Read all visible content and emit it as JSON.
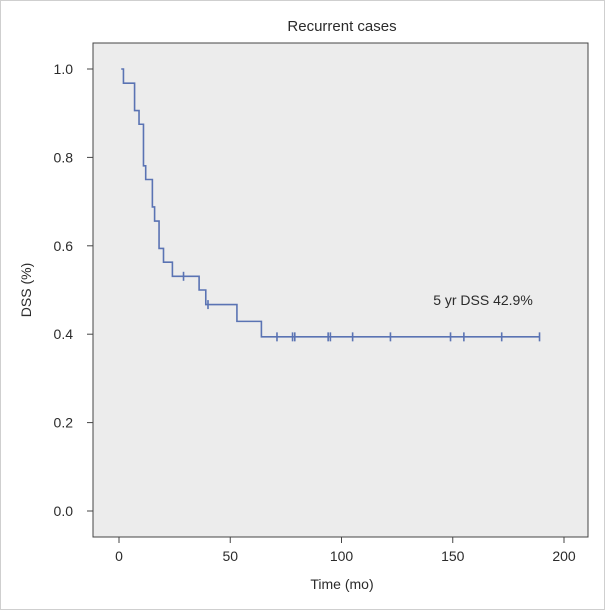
{
  "chart_data": {
    "type": "line",
    "title": "Recurrent cases",
    "xlabel": "Time (mo)",
    "ylabel": "DSS (%)",
    "xlim": [
      0,
      200
    ],
    "ylim": [
      0,
      1.0
    ],
    "xticks": [
      "0",
      "50",
      "100",
      "150",
      "200"
    ],
    "yticks": [
      "0.0",
      "0.2",
      "0.4",
      "0.6",
      "0.8",
      "1.0"
    ],
    "annotation": "5 yr DSS 42.9%",
    "grid": false,
    "colors": {
      "line": "#5a73b3",
      "plot_bg": "#ececec",
      "axis": "#444444"
    },
    "series": [
      {
        "name": "Recurrent cases",
        "steps": [
          {
            "x": 1,
            "y": 1.0
          },
          {
            "x": 2,
            "y": 0.968
          },
          {
            "x": 7,
            "y": 0.906
          },
          {
            "x": 9,
            "y": 0.875
          },
          {
            "x": 11,
            "y": 0.781
          },
          {
            "x": 12,
            "y": 0.75
          },
          {
            "x": 15,
            "y": 0.688
          },
          {
            "x": 16,
            "y": 0.656
          },
          {
            "x": 18,
            "y": 0.594
          },
          {
            "x": 20,
            "y": 0.563
          },
          {
            "x": 24,
            "y": 0.531
          },
          {
            "x": 36,
            "y": 0.5
          },
          {
            "x": 39,
            "y": 0.467
          },
          {
            "x": 53,
            "y": 0.429
          },
          {
            "x": 64,
            "y": 0.394
          },
          {
            "x": 189,
            "y": 0.394
          }
        ],
        "censored": [
          {
            "x": 29,
            "y": 0.531
          },
          {
            "x": 40,
            "y": 0.467
          },
          {
            "x": 71,
            "y": 0.394
          },
          {
            "x": 78,
            "y": 0.394
          },
          {
            "x": 79,
            "y": 0.394
          },
          {
            "x": 94,
            "y": 0.394
          },
          {
            "x": 95,
            "y": 0.394
          },
          {
            "x": 105,
            "y": 0.394
          },
          {
            "x": 122,
            "y": 0.394
          },
          {
            "x": 149,
            "y": 0.394
          },
          {
            "x": 155,
            "y": 0.394
          },
          {
            "x": 172,
            "y": 0.394
          },
          {
            "x": 189,
            "y": 0.394
          }
        ]
      }
    ]
  }
}
